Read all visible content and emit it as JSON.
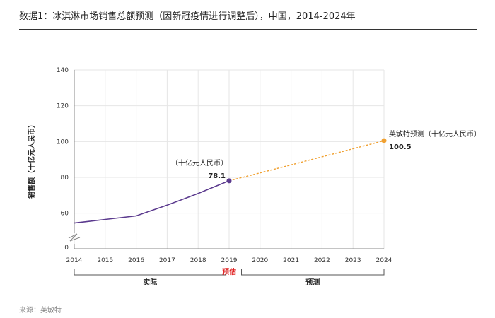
{
  "header": {
    "title": "数据1：冰淇淋市场销售总额预测（因新冠疫情进行调整后），中国，2014-2024年"
  },
  "footer": {
    "source": "来源：英敏特"
  },
  "colors": {
    "actual": "#5b3a8e",
    "forecast": "#f0a030",
    "estimate_label": "#e02020",
    "axis": "#888888"
  },
  "chart_data": {
    "type": "line",
    "title": "",
    "ylabel": "销售额（十亿元人民币）",
    "xlabel": "",
    "ylim": [
      0,
      140
    ],
    "y_break": true,
    "yticks": [
      0,
      60,
      80,
      100,
      120,
      140
    ],
    "xticks": [
      2014,
      2015,
      2016,
      2017,
      2018,
      2019,
      2020,
      2021,
      2022,
      2023,
      2024
    ],
    "grid": true,
    "series": [
      {
        "style": "solid",
        "color": "#5b3a8e",
        "x": [
          2014,
          2015,
          2016,
          2017,
          2018,
          2019
        ],
        "y": [
          54.5,
          56.5,
          58.5,
          64.5,
          71,
          78.1
        ]
      },
      {
        "style": "dashed",
        "color": "#f0a030",
        "x": [
          2019,
          2020,
          2021,
          2022,
          2023,
          2024
        ],
        "y": [
          78.1,
          82.5,
          87,
          91.5,
          96,
          100.5
        ]
      }
    ],
    "annotations": [
      {
        "x": 2019,
        "y": 78.1,
        "label": "（十亿元人民币）",
        "value": "78.1"
      },
      {
        "x": 2024,
        "y": 100.5,
        "label": "英敏特预测（十亿元人民币）",
        "value": "100.5"
      }
    ],
    "periods": [
      {
        "label": "实际",
        "from": 2014,
        "to": 2018.9
      },
      {
        "label": "预估",
        "from": 2019,
        "to": 2019
      },
      {
        "label": "预测",
        "from": 2019.4,
        "to": 2024
      }
    ]
  }
}
